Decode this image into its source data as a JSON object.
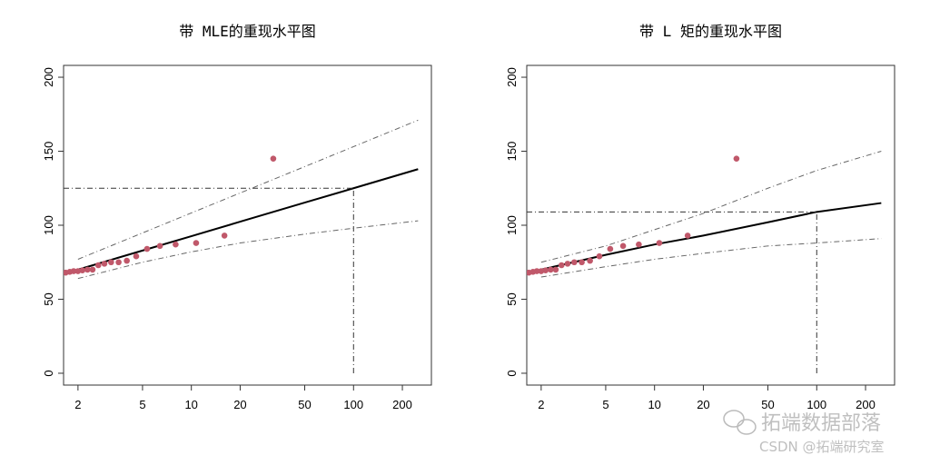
{
  "chart_data": [
    {
      "type": "scatter",
      "title": "带 MLE的重现水平图",
      "xscale": "log",
      "xlim": [
        1.63,
        302
      ],
      "ylim": [
        -8,
        208
      ],
      "xticks": [
        2,
        5,
        10,
        20,
        50,
        100,
        200
      ],
      "yticks": [
        0,
        50,
        100,
        150,
        200
      ],
      "grid": false,
      "points": {
        "x": [
          32,
          16,
          10.7,
          8,
          6.4,
          5.33,
          4.57,
          4,
          3.56,
          3.2,
          2.91,
          2.67,
          2.46,
          2.29,
          2.13,
          2.0,
          1.88,
          1.78,
          1.68
        ],
        "y": [
          145,
          93,
          88,
          87,
          86,
          84,
          79,
          76,
          75,
          75,
          74,
          73,
          70,
          70,
          69.5,
          69,
          69,
          68.5,
          68
        ]
      },
      "return_level_curve": {
        "x": [
          2,
          5,
          10,
          20,
          50,
          100,
          250
        ],
        "y": [
          70,
          82.9,
          92.6,
          102.4,
          115.3,
          125,
          137.9
        ]
      },
      "upper_ci": {
        "x": [
          2,
          5,
          10,
          20,
          50,
          100,
          250
        ],
        "y": [
          77,
          94.8,
          108.3,
          121.8,
          139.6,
          153.1,
          171
        ]
      },
      "lower_ci": {
        "x": [
          2,
          5,
          10,
          20,
          50,
          100,
          250
        ],
        "y": [
          64,
          75,
          82,
          88,
          94,
          98,
          103
        ]
      },
      "reference": {
        "return_period": 100,
        "level": 125
      },
      "color_points": "#c0586a"
    },
    {
      "type": "scatter",
      "title": "带 L 矩的重现水平图",
      "xscale": "log",
      "xlim": [
        1.63,
        302
      ],
      "ylim": [
        -8,
        208
      ],
      "xticks": [
        2,
        5,
        10,
        20,
        50,
        100,
        200
      ],
      "yticks": [
        0,
        50,
        100,
        150,
        200
      ],
      "grid": false,
      "points": {
        "x": [
          32,
          16,
          10.7,
          8,
          6.4,
          5.33,
          4.57,
          4,
          3.56,
          3.2,
          2.91,
          2.67,
          2.46,
          2.29,
          2.13,
          2.0,
          1.88,
          1.78,
          1.68
        ],
        "y": [
          145,
          93,
          88,
          87,
          86,
          84,
          79,
          76,
          75,
          75,
          74,
          73,
          70,
          70,
          69.5,
          69,
          69,
          68.5,
          68
        ]
      },
      "return_level_curve": {
        "x": [
          2,
          5,
          10,
          20,
          50,
          100,
          250
        ],
        "y": [
          70,
          80,
          87,
          93,
          102,
          109,
          115
        ]
      },
      "upper_ci": {
        "x": [
          2,
          5,
          10,
          20,
          50,
          100,
          250
        ],
        "y": [
          75,
          86,
          97,
          108,
          125,
          137,
          150
        ]
      },
      "lower_ci": {
        "x": [
          2,
          5,
          10,
          20,
          50,
          100,
          250
        ],
        "y": [
          65,
          72,
          77,
          81,
          86,
          88,
          91
        ]
      },
      "reference": {
        "return_period": 100,
        "level": 109
      },
      "color_points": "#c0586a"
    }
  ],
  "watermark": {
    "line1": "拓端数据部落",
    "line2": "CSDN @拓端研究室"
  }
}
